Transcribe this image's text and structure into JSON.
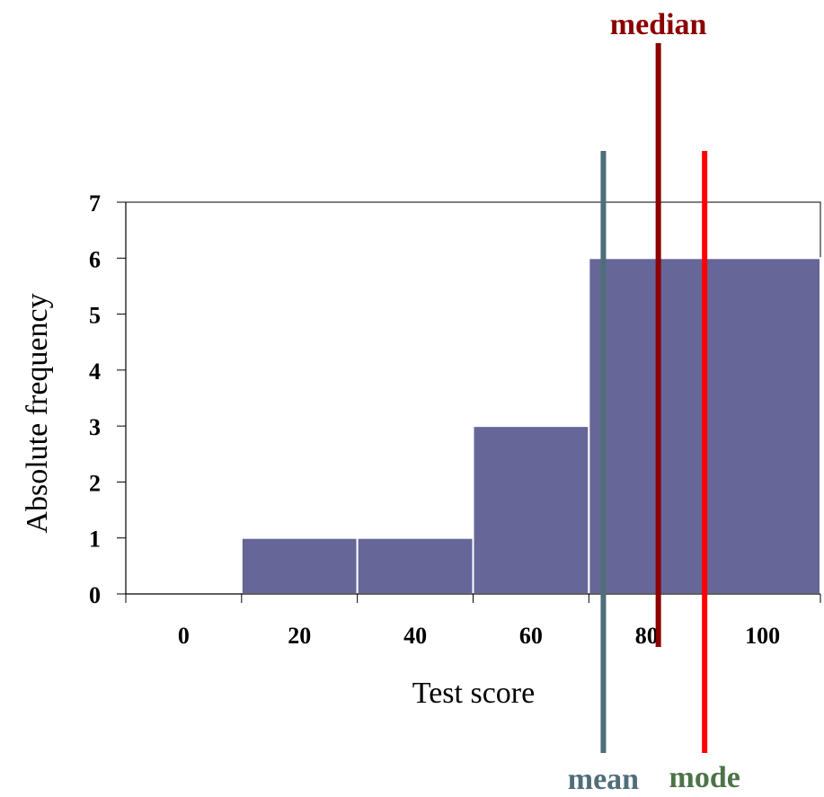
{
  "chart_data": {
    "type": "bar",
    "categories": [
      "0",
      "20",
      "40",
      "60",
      "80",
      "100"
    ],
    "values": [
      0,
      1,
      1,
      3,
      6,
      6
    ],
    "xlabel": "Test score",
    "ylabel": "Absolute frequency",
    "ylim": [
      0,
      7
    ],
    "yticks": [
      "0",
      "1",
      "2",
      "3",
      "4",
      "5",
      "6",
      "7"
    ],
    "grid": false,
    "bar_color": "#666699",
    "markers": [
      {
        "label": "median",
        "x": 82,
        "color": "#8b0000"
      },
      {
        "label": "mean",
        "x": 72.5,
        "color": "#4f6d7a"
      },
      {
        "label": "mode",
        "x": 90,
        "color": "#ff0000",
        "label_color": "#4d7349"
      }
    ]
  }
}
